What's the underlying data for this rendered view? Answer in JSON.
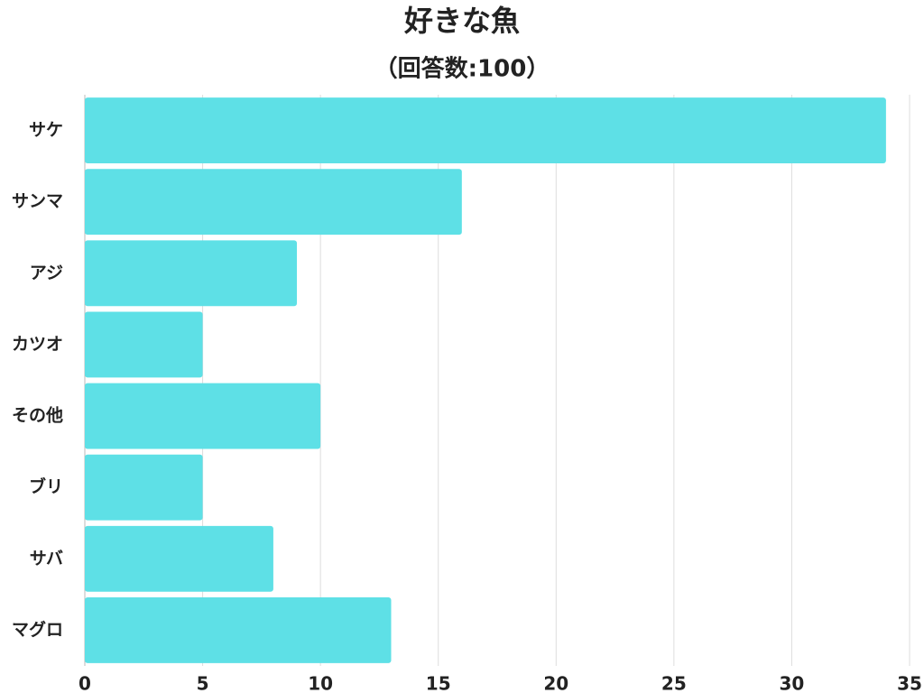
{
  "chart_data": {
    "type": "bar",
    "orientation": "horizontal",
    "title": "好きな魚",
    "subtitle": "（回答数:100）",
    "categories": [
      "サケ",
      "サンマ",
      "アジ",
      "カツオ",
      "その他",
      "ブリ",
      "サバ",
      "マグロ"
    ],
    "values": [
      34,
      16,
      9,
      5,
      10,
      5,
      8,
      13
    ],
    "color": "#5ee0e6",
    "xlim": [
      0,
      35
    ],
    "xticks": [
      0,
      5,
      10,
      15,
      20,
      25,
      30,
      35
    ],
    "grid": true
  }
}
